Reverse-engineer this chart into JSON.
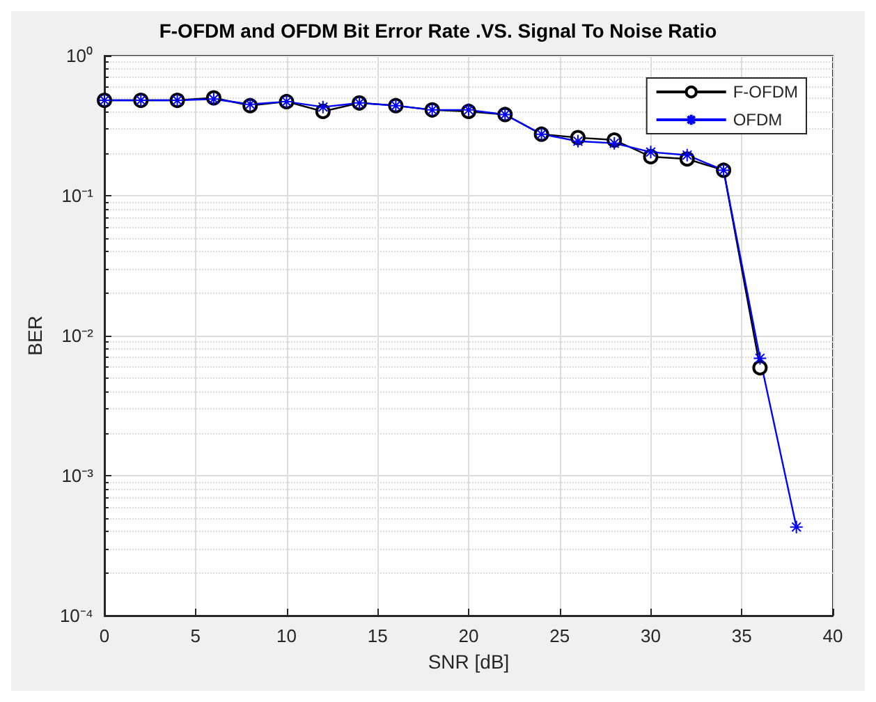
{
  "chart_data": {
    "type": "line",
    "title": "F-OFDM and OFDM Bit Error Rate .VS. Signal To Noise Ratio",
    "xlabel": "SNR [dB]",
    "ylabel": "BER",
    "log": "y",
    "grid": true,
    "legend": "top right",
    "xlim": [
      0,
      40
    ],
    "xticks": [
      0,
      5,
      10,
      15,
      20,
      25,
      30,
      35,
      40
    ],
    "ylim": [
      0.0001,
      1
    ],
    "yticks": [
      {
        "value": 0.0001,
        "label": "10⁻⁴"
      },
      {
        "value": 0.001,
        "label": "10⁻³"
      },
      {
        "value": 0.01,
        "label": "10⁻²"
      },
      {
        "value": 0.1,
        "label": "10⁻¹"
      },
      {
        "value": 1,
        "label": "10⁰"
      }
    ],
    "x": [
      0,
      2,
      4,
      6,
      8,
      10,
      12,
      14,
      16,
      18,
      20,
      22,
      24,
      26,
      28,
      30,
      32,
      34,
      36,
      38
    ],
    "series": [
      {
        "name": "F-OFDM",
        "color": "#000000",
        "marker": "circle",
        "values": [
          0.48,
          0.48,
          0.48,
          0.5,
          0.44,
          0.47,
          0.4,
          0.46,
          0.44,
          0.41,
          0.4,
          0.38,
          0.275,
          0.26,
          0.25,
          0.19,
          0.183,
          0.152,
          0.0059,
          null
        ]
      },
      {
        "name": "OFDM",
        "color": "#0000ff",
        "marker": "cross",
        "values": [
          0.48,
          0.48,
          0.48,
          0.49,
          0.45,
          0.47,
          0.43,
          0.46,
          0.44,
          0.41,
          0.41,
          0.38,
          0.275,
          0.245,
          0.237,
          0.205,
          0.195,
          0.152,
          0.0069,
          0.00043
        ]
      }
    ]
  }
}
